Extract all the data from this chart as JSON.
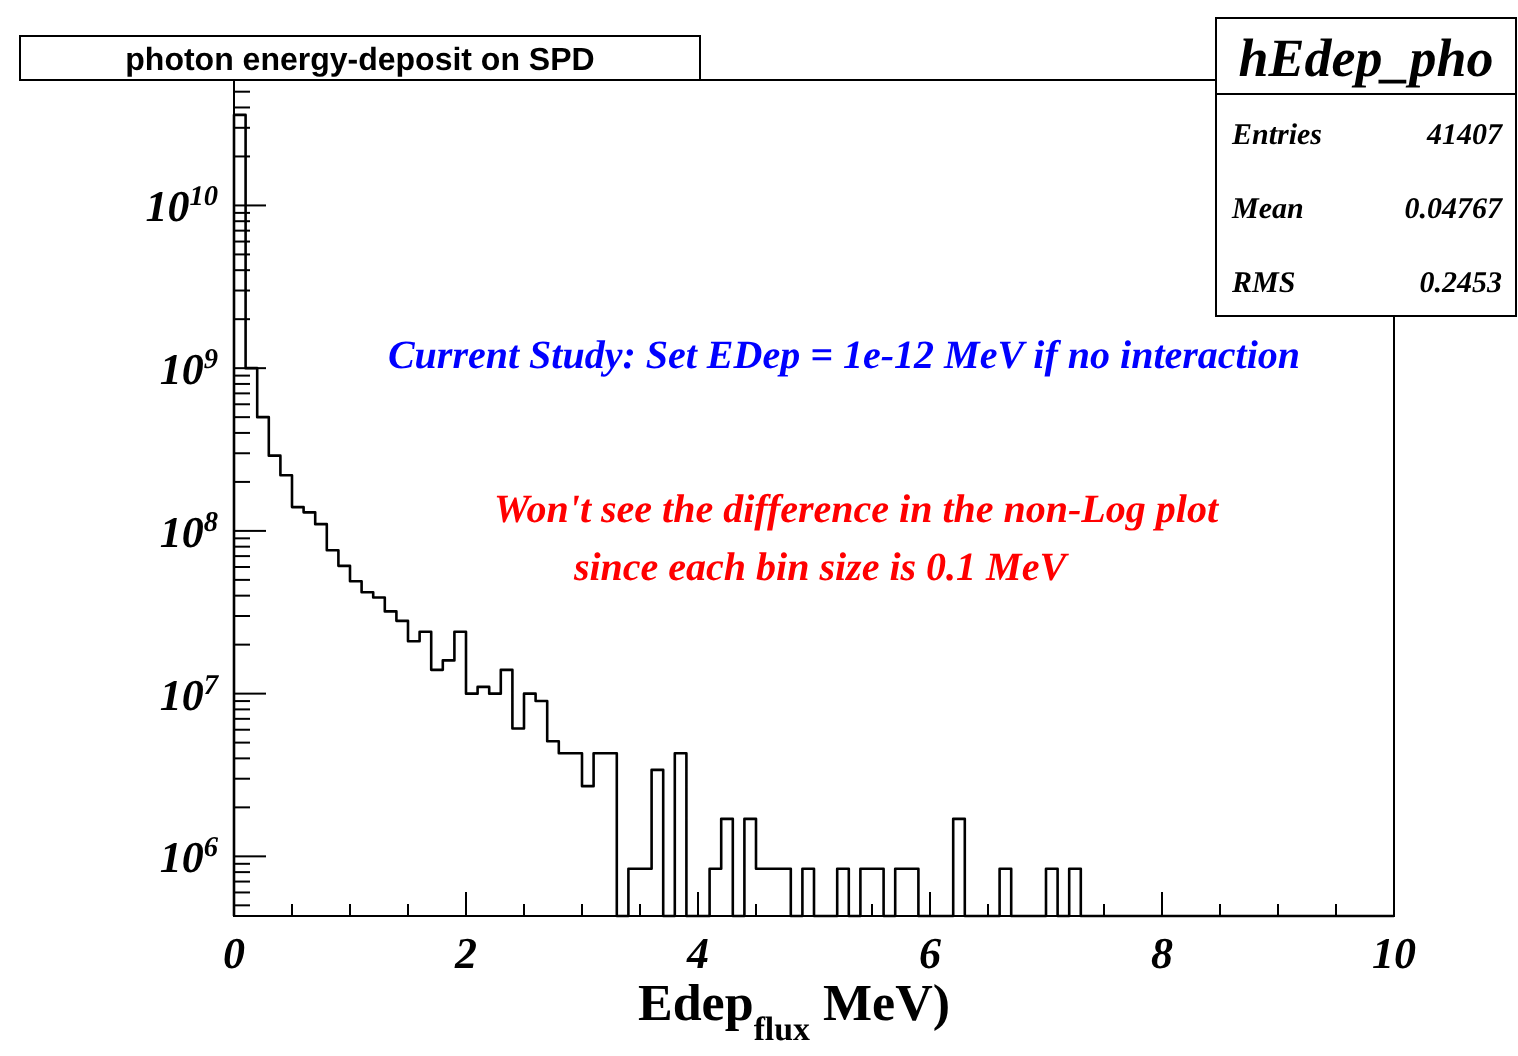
{
  "chart_data": {
    "type": "histogram",
    "title": "photon energy-deposit on SPD",
    "xlabel": "Edep$_{flux}$ MeV)",
    "bins": [
      0,
      0.1,
      0.2,
      0.3,
      0.4,
      0.5,
      0.6,
      0.7,
      0.8,
      0.9,
      1,
      1.1,
      1.2,
      1.3,
      1.4,
      1.5,
      1.6,
      1.7,
      1.8,
      1.9,
      2,
      2.1,
      2.2,
      2.3,
      2.4,
      2.5,
      2.6,
      2.7,
      2.8,
      2.9,
      3,
      3.1,
      3.2,
      3.3,
      3.4,
      3.5,
      3.6,
      3.7,
      3.8,
      3.9,
      4,
      4.1,
      4.2,
      4.3,
      4.4,
      4.5,
      4.6,
      4.7,
      4.8,
      4.9,
      5,
      5.1,
      5.2,
      5.3,
      5.4,
      5.5,
      5.6,
      5.7,
      5.8,
      5.9,
      6,
      6.1,
      6.2,
      6.3,
      6.4,
      6.5,
      6.6,
      6.7,
      6.8,
      6.9,
      7,
      7.1,
      7.2,
      7.3,
      7.4,
      7.5,
      7.6,
      7.7,
      7.8,
      7.9,
      8,
      8.1,
      8.2,
      8.3,
      8.4,
      8.5,
      8.6,
      8.7,
      8.8,
      8.9,
      9,
      9.1,
      9.2,
      9.3,
      9.4,
      9.5,
      9.6,
      9.7,
      9.8,
      9.9,
      10
    ],
    "values": [
      36000000000.0,
      1000000000.0,
      500000000.0,
      290000000.0,
      220000000.0,
      140000000.0,
      130000000.0,
      110000000.0,
      76000000.0,
      61000000.0,
      49000000.0,
      42000000.0,
      39000000.0,
      32000000.0,
      28000000.0,
      21000000.0,
      24000000.0,
      14000000.0,
      16000000.0,
      24000000.0,
      10000000.0,
      11000000.0,
      10000000.0,
      14000000.0,
      6100000.0,
      10000000.0,
      9000000.0,
      5100000.0,
      4300000.0,
      4300000.0,
      2700000.0,
      4300000.0,
      4300000.0,
      null,
      840000.0,
      840000.0,
      3400000.0,
      null,
      4300000.0,
      null,
      null,
      840000.0,
      1700000.0,
      null,
      1700000.0,
      840000.0,
      840000.0,
      840000.0,
      null,
      840000.0,
      null,
      null,
      840000.0,
      null,
      840000.0,
      840000.0,
      null,
      840000.0,
      840000.0,
      null,
      null,
      null,
      1700000.0,
      null,
      null,
      null,
      840000.0,
      null,
      null,
      null,
      840000.0,
      null,
      840000.0,
      null,
      null,
      null,
      null,
      null,
      null,
      null,
      null,
      null,
      null,
      null,
      null,
      null,
      null,
      null,
      null,
      null,
      null,
      null,
      null,
      null,
      null,
      null,
      null,
      null,
      null,
      null
    ],
    "color": "#000000",
    "log": "y",
    "xlim": [
      0,
      10
    ],
    "ylim": [
      430000.0,
      59000000000.0
    ],
    "xticks": [
      0,
      {
        "value": 0.5,
        "label": null
      },
      {
        "value": 1,
        "label": null
      },
      {
        "value": 1.5,
        "label": null
      },
      2,
      {
        "value": 2.5,
        "label": null
      },
      {
        "value": 3,
        "label": null
      },
      {
        "value": 3.5,
        "label": null
      },
      4,
      {
        "value": 4.5,
        "label": null
      },
      {
        "value": 5,
        "label": null
      },
      {
        "value": 5.5,
        "label": null
      },
      6,
      {
        "value": 6.5,
        "label": null
      },
      {
        "value": 7,
        "label": null
      },
      {
        "value": 7.5,
        "label": null
      },
      8,
      {
        "value": 8.5,
        "label": null
      },
      {
        "value": 9,
        "label": null
      },
      {
        "value": 9.5,
        "label": null
      },
      10
    ],
    "yticks": [
      {
        "value": 500000.0,
        "label": null
      },
      {
        "value": 600000.0,
        "label": null
      },
      {
        "value": 700000.0,
        "label": null
      },
      {
        "value": 800000.0,
        "label": null
      },
      {
        "value": 900000.0,
        "label": null
      },
      {
        "value": 1000000.0,
        "label": "10$^{6}$"
      },
      {
        "value": 2000000.0,
        "label": null
      },
      {
        "value": 3000000.0,
        "label": null
      },
      {
        "value": 4000000.0,
        "label": null
      },
      {
        "value": 5000000.0,
        "label": null
      },
      {
        "value": 6000000.0,
        "label": null
      },
      {
        "value": 7000000.0,
        "label": null
      },
      {
        "value": 8000000.0,
        "label": null
      },
      {
        "value": 9000000.0,
        "label": null
      },
      {
        "value": 10000000.0,
        "label": "10$^{7}$"
      },
      {
        "value": 20000000.0,
        "label": null
      },
      {
        "value": 30000000.0,
        "label": null
      },
      {
        "value": 40000000.0,
        "label": null
      },
      {
        "value": 50000000.0,
        "label": null
      },
      {
        "value": 60000000.0,
        "label": null
      },
      {
        "value": 70000000.0,
        "label": null
      },
      {
        "value": 80000000.0,
        "label": null
      },
      {
        "value": 90000000.0,
        "label": null
      },
      {
        "value": 100000000.0,
        "label": "10$^{8}$"
      },
      {
        "value": 200000000.0,
        "label": null
      },
      {
        "value": 300000000.0,
        "label": null
      },
      {
        "value": 400000000.0,
        "label": null
      },
      {
        "value": 500000000.0,
        "label": null
      },
      {
        "value": 600000000.0,
        "label": null
      },
      {
        "value": 700000000.0,
        "label": null
      },
      {
        "value": 800000000.0,
        "label": null
      },
      {
        "value": 900000000.0,
        "label": null
      },
      {
        "value": 1000000000.0,
        "label": "10$^{9}$"
      },
      {
        "value": 2000000000.0,
        "label": null
      },
      {
        "value": 3000000000.0,
        "label": null
      },
      {
        "value": 4000000000.0,
        "label": null
      },
      {
        "value": 5000000000.0,
        "label": null
      },
      {
        "value": 6000000000.0,
        "label": null
      },
      {
        "value": 7000000000.0,
        "label": null
      },
      {
        "value": 8000000000.0,
        "label": null
      },
      {
        "value": 9000000000.0,
        "label": null
      },
      {
        "value": 10000000000.0,
        "label": "10$^{10}$"
      },
      {
        "value": 20000000000.0,
        "label": null
      },
      {
        "value": 30000000000.0,
        "label": null
      },
      {
        "value": 40000000000.0,
        "label": null
      },
      {
        "value": 50000000000.0,
        "label": null
      }
    ],
    "annotations": [
      "hEdep_pho",
      "Entries 41407",
      "Mean 0.04767",
      "RMS 0.2453",
      "Current Study: Set EDep = 1e-12 MeV if no interaction",
      "Won't see the difference in the non-Log plot\nsince each bin size is 0.1 MeV"
    ]
  }
}
